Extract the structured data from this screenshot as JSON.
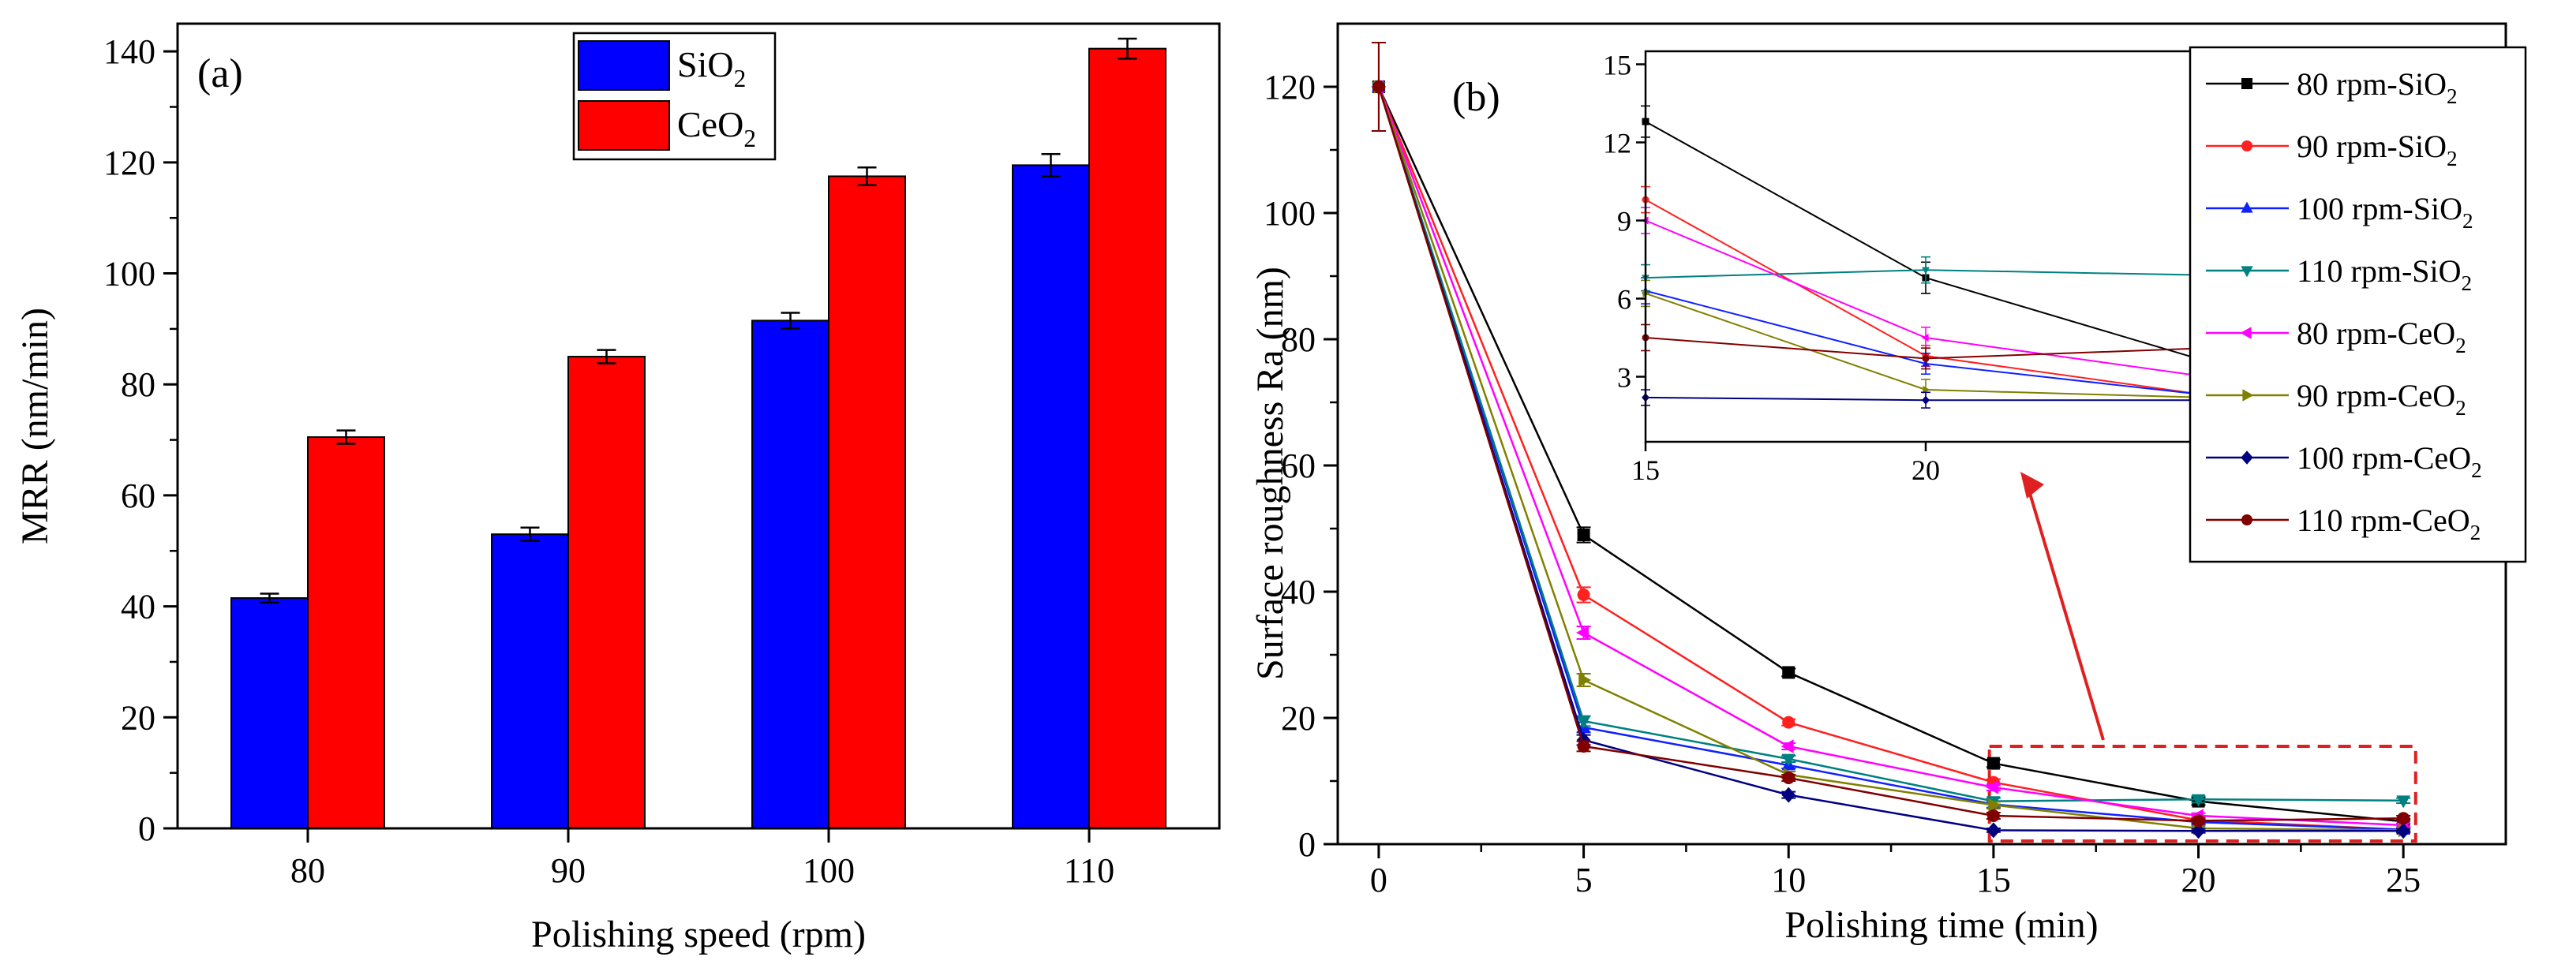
{
  "chart_data": [
    {
      "type": "bar",
      "panel_label": "(a)",
      "xlabel": "Polishing speed (rpm)",
      "ylabel": "MRR (nm/min)",
      "categories": [
        "80",
        "90",
        "100",
        "110"
      ],
      "ylim": [
        0,
        145
      ],
      "yticks": [
        0,
        20,
        40,
        60,
        80,
        100,
        120,
        140
      ],
      "legend_position": "top-center",
      "series": [
        {
          "name": "SiO",
          "subscript": "2",
          "color": "#0000ff",
          "values": [
            41.5,
            53,
            91.5,
            119.5
          ],
          "errors": [
            0.8,
            1.2,
            1.4,
            2.0
          ]
        },
        {
          "name": "CeO",
          "subscript": "2",
          "color": "#ff0000",
          "values": [
            70.5,
            85,
            117.5,
            140.5
          ],
          "errors": [
            1.2,
            1.2,
            1.6,
            1.8
          ]
        }
      ]
    },
    {
      "type": "line",
      "panel_label": "(b)",
      "xlabel": "Polishing time (min)",
      "ylabel": "Surface roughness Ra (nm)",
      "xlim": [
        -1,
        27.5
      ],
      "ylim": [
        0,
        130
      ],
      "xticks": [
        0,
        5,
        10,
        15,
        20,
        25
      ],
      "yticks": [
        0,
        20,
        40,
        60,
        80,
        100,
        120
      ],
      "legend_position": "right",
      "x": [
        0,
        5,
        10,
        15,
        20,
        25
      ],
      "series": [
        {
          "name": "80 rpm-SiO",
          "subscript": "2",
          "color": "#000000",
          "marker": "square",
          "values": [
            120,
            49,
            27.2,
            12.8,
            6.8,
            3.6
          ],
          "errors": [
            7,
            1.2,
            0.6,
            0.6,
            0.6,
            0.4
          ]
        },
        {
          "name": "90 rpm-SiO",
          "subscript": "2",
          "color": "#ff2020",
          "marker": "circle",
          "values": [
            120,
            39.5,
            19.3,
            9.8,
            3.8,
            2.3
          ],
          "errors": [
            0,
            1.2,
            0.5,
            0.5,
            0.4,
            0.3
          ]
        },
        {
          "name": "100 rpm-SiO",
          "subscript": "2",
          "color": "#1020ff",
          "marker": "triangle-up",
          "values": [
            120,
            18.5,
            12.5,
            6.3,
            3.5,
            2.3
          ],
          "errors": [
            0,
            0.8,
            0.5,
            0.5,
            0.4,
            0.3
          ]
        },
        {
          "name": "110 rpm-SiO",
          "subscript": "2",
          "color": "#008080",
          "marker": "triangle-down",
          "values": [
            120,
            19.5,
            13.5,
            6.8,
            7.1,
            6.9
          ],
          "errors": [
            0,
            0.8,
            0.5,
            0.5,
            0.5,
            0.4
          ]
        },
        {
          "name": "80 rpm-CeO",
          "subscript": "2",
          "color": "#ff00ff",
          "marker": "triangle-left",
          "values": [
            120,
            33.5,
            15.5,
            9.0,
            4.5,
            3.0
          ],
          "errors": [
            0,
            1.0,
            0.5,
            0.5,
            0.4,
            0.3
          ]
        },
        {
          "name": "90 rpm-CeO",
          "subscript": "2",
          "color": "#808000",
          "marker": "triangle-right",
          "values": [
            120,
            26,
            11,
            6.2,
            2.5,
            2.2
          ],
          "errors": [
            0,
            1.0,
            0.5,
            0.5,
            0.4,
            0.3
          ]
        },
        {
          "name": "100 rpm-CeO",
          "subscript": "2",
          "color": "#000080",
          "marker": "diamond",
          "values": [
            120,
            16.5,
            7.8,
            2.2,
            2.1,
            2.1
          ],
          "errors": [
            0,
            0.8,
            0.5,
            0.3,
            0.3,
            0.3
          ]
        },
        {
          "name": "110 rpm-CeO",
          "subscript": "2",
          "color": "#800000",
          "marker": "circle",
          "values": [
            120,
            15.5,
            10.5,
            4.5,
            3.7,
            4.1
          ],
          "errors": [
            7,
            0.8,
            0.5,
            0.5,
            0.4,
            0.4
          ]
        }
      ],
      "inset": {
        "xlim": [
          15,
          25
        ],
        "ylim": [
          0.5,
          15.5
        ],
        "xticks": [
          15,
          20,
          25
        ],
        "yticks": [
          3,
          6,
          9,
          12,
          15
        ],
        "position": "top-center",
        "zoom_box_x": [
          14.9,
          25.3
        ],
        "zoom_box_y": [
          0,
          15.5
        ]
      }
    }
  ]
}
